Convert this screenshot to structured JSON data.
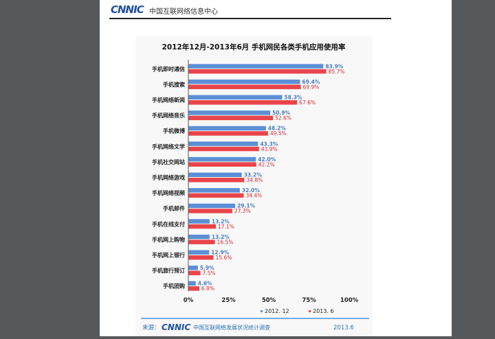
{
  "header": {
    "logo": "CNNIC",
    "title": "中国互联网络信息中心"
  },
  "footer": {
    "source_label": "来源：",
    "logo": "CNNIC",
    "org": "中国互联网络发展状况统计调查",
    "date": "2013.6"
  },
  "chart_data": {
    "type": "bar",
    "orientation": "horizontal",
    "title": "2012年12月-2013年6月 手机网民各类手机应用使用率",
    "categories": [
      "手机即时通信",
      "手机搜索",
      "手机网络新闻",
      "手机网络音乐",
      "手机微博",
      "手机网络文学",
      "手机社交网站",
      "手机网络游戏",
      "手机网络视频",
      "手机邮件",
      "手机在线支付",
      "手机网上购物",
      "手机网上银行",
      "手机旅行预订",
      "手机团购"
    ],
    "series": [
      {
        "name": "2012. 12",
        "color": "#5b8fd6",
        "label_color": "#4a7cc2",
        "values": [
          83.9,
          69.4,
          58.3,
          50.9,
          48.2,
          43.3,
          42.0,
          33.2,
          32.0,
          29.1,
          13.2,
          13.2,
          12.9,
          5.9,
          4.6
        ]
      },
      {
        "name": "2013. 6",
        "color": "#e8454a",
        "label_color": "#d8262c",
        "values": [
          85.7,
          69.9,
          67.6,
          52.6,
          49.5,
          43.9,
          42.2,
          34.8,
          34.4,
          27.3,
          17.1,
          16.5,
          15.6,
          7.5,
          6.8
        ]
      }
    ],
    "xlim": [
      0,
      100
    ],
    "xticks": [
      "0%",
      "25%",
      "50%",
      "75%",
      "100%"
    ],
    "grid": false,
    "legend_position": "bottom"
  }
}
